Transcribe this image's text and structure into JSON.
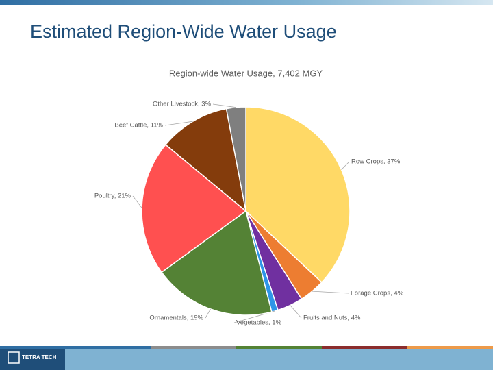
{
  "slide": {
    "title": "Estimated Region-Wide Water Usage",
    "logo": "TETRA TECH"
  },
  "chart_data": {
    "type": "pie",
    "title": "Region-wide Water Usage, 7,402 MGY",
    "values": [
      37,
      4,
      4,
      1,
      19,
      21,
      11,
      3
    ],
    "value_labels": [
      "Row Crops, 37%",
      "Forage Crops, 4%",
      "Fruits and Nuts, 4%",
      "Vegetables, 1%",
      "Ornamentals, 19%",
      "Poultry, 21%",
      "Beef Cattle, 11%",
      "Other Livestock, 3%"
    ],
    "colors": [
      "#FFD966",
      "#ED7D31",
      "#7030A0",
      "#2E95E8",
      "#548235",
      "#FF5050",
      "#843C0C",
      "#7F7F7F"
    ]
  }
}
